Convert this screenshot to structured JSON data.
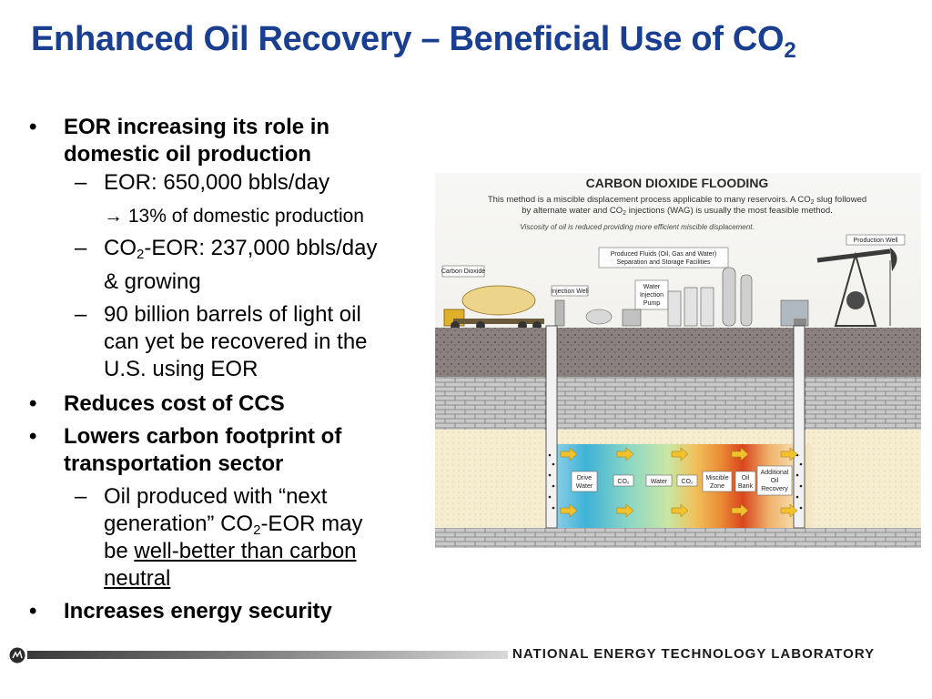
{
  "slide": {
    "title_main": "Enhanced Oil Recovery – Beneficial Use of CO",
    "title_sub": "2"
  },
  "bullets": {
    "b1": {
      "line1": "EOR increasing its role in",
      "line2": "domestic oil production"
    },
    "b1_1": "EOR: 650,000 bbls/day",
    "b1_1_note": "→ 13% of domestic production",
    "b1_2": {
      "pre": "CO",
      "sub": "2",
      "post": "-EOR: 237,000 bbls/day",
      "line2": "& growing"
    },
    "b1_3": {
      "line1": "90 billion barrels of light oil",
      "line2": "can yet be recovered in the",
      "line3": "U.S. using EOR"
    },
    "b2": "Reduces cost of CCS",
    "b3": {
      "line1": "Lowers carbon footprint of",
      "line2": "transportation sector"
    },
    "b3_1": {
      "line1": "Oil produced with “next",
      "line2_pre": "generation” CO",
      "line2_sub": "2",
      "line2_post": "-EOR may",
      "line3_pre": "be ",
      "line3_link": "well-better than carbon",
      "line4_link": "neutral"
    },
    "b4": "Increases energy security",
    "bullet_glyph": "•",
    "dash_glyph": "–"
  },
  "diagram": {
    "title": "CARBON DIOXIDE FLOODING",
    "desc1_pre": "This method is a miscible displacement process applicable to many reservoirs. A CO",
    "desc1_sub": "2",
    "desc1_post": " slug followed",
    "desc2_pre": "by alternate water and CO",
    "desc2_sub": "2",
    "desc2_post": " injections (WAG) is usually the most feasible method.",
    "desc3": "Viscosity of oil is reduced providing more efficient miscible displacement.",
    "labels": {
      "carbon_dioxide": "Carbon Dioxide",
      "injection_well": "Injection Well",
      "water_pump_1": "Water",
      "water_pump_2": "Injection",
      "water_pump_3": "Pump",
      "produced_1": "Produced Fluids (Oil, Gas and Water)",
      "produced_2": "Separation and Storage Facilities",
      "production_well": "Production Well"
    },
    "zones": {
      "drive_water_1": "Drive",
      "drive_water_2": "Water",
      "co2_a": "CO₂",
      "water": "Water",
      "co2_b": "CO₂",
      "miscible_1": "Miscible",
      "miscible_2": "Zone",
      "oil_bank_1": "Oil",
      "oil_bank_2": "Bank",
      "additional_1": "Additional",
      "additional_2": "Oil",
      "additional_3": "Recovery"
    },
    "colors": {
      "title": "#1a3f91",
      "heading": "#2a2a2a",
      "reservoir_cool": "#3fb3d6",
      "reservoir_warm": "#d9461f",
      "arrow": "#f2c12e"
    }
  },
  "footer": {
    "lab_name": "NATIONAL ENERGY TECHNOLOGY LABORATORY"
  }
}
